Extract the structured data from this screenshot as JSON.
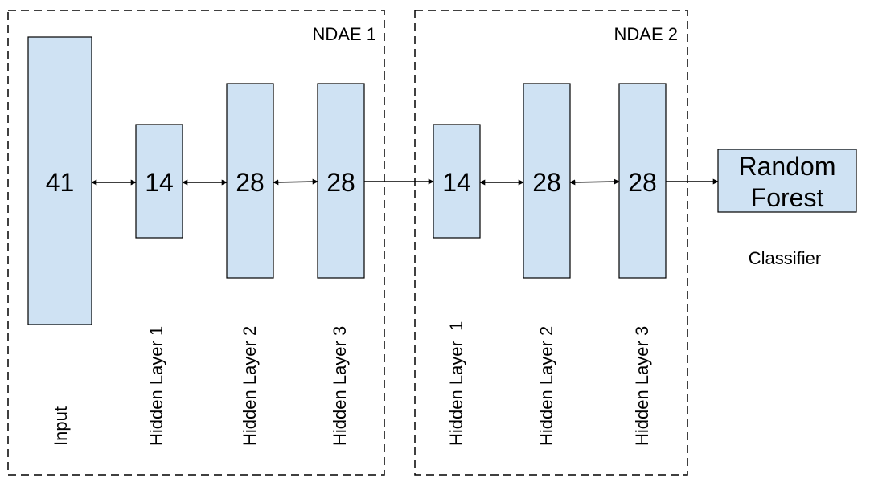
{
  "groups": [
    {
      "title": "NDAE 1"
    },
    {
      "title": "NDAE 2"
    }
  ],
  "layers": [
    {
      "value": "41",
      "label": "Input"
    },
    {
      "value": "14",
      "label": "Hidden Layer 1"
    },
    {
      "value": "28",
      "label": "Hidden Layer 2"
    },
    {
      "value": "28",
      "label": "Hidden Layer 3"
    },
    {
      "value": "14",
      "label": "Hidden Layer  1"
    },
    {
      "value": "28",
      "label": "Hidden Layer 2"
    },
    {
      "value": "28",
      "label": "Hidden Layer 3"
    }
  ],
  "classifier": {
    "box_line1": "Random",
    "box_line2": "Forest",
    "label": "Classifier"
  },
  "colors": {
    "box_fill": "#cfe2f3",
    "box_stroke": "#000000",
    "dash_stroke": "#000000"
  }
}
